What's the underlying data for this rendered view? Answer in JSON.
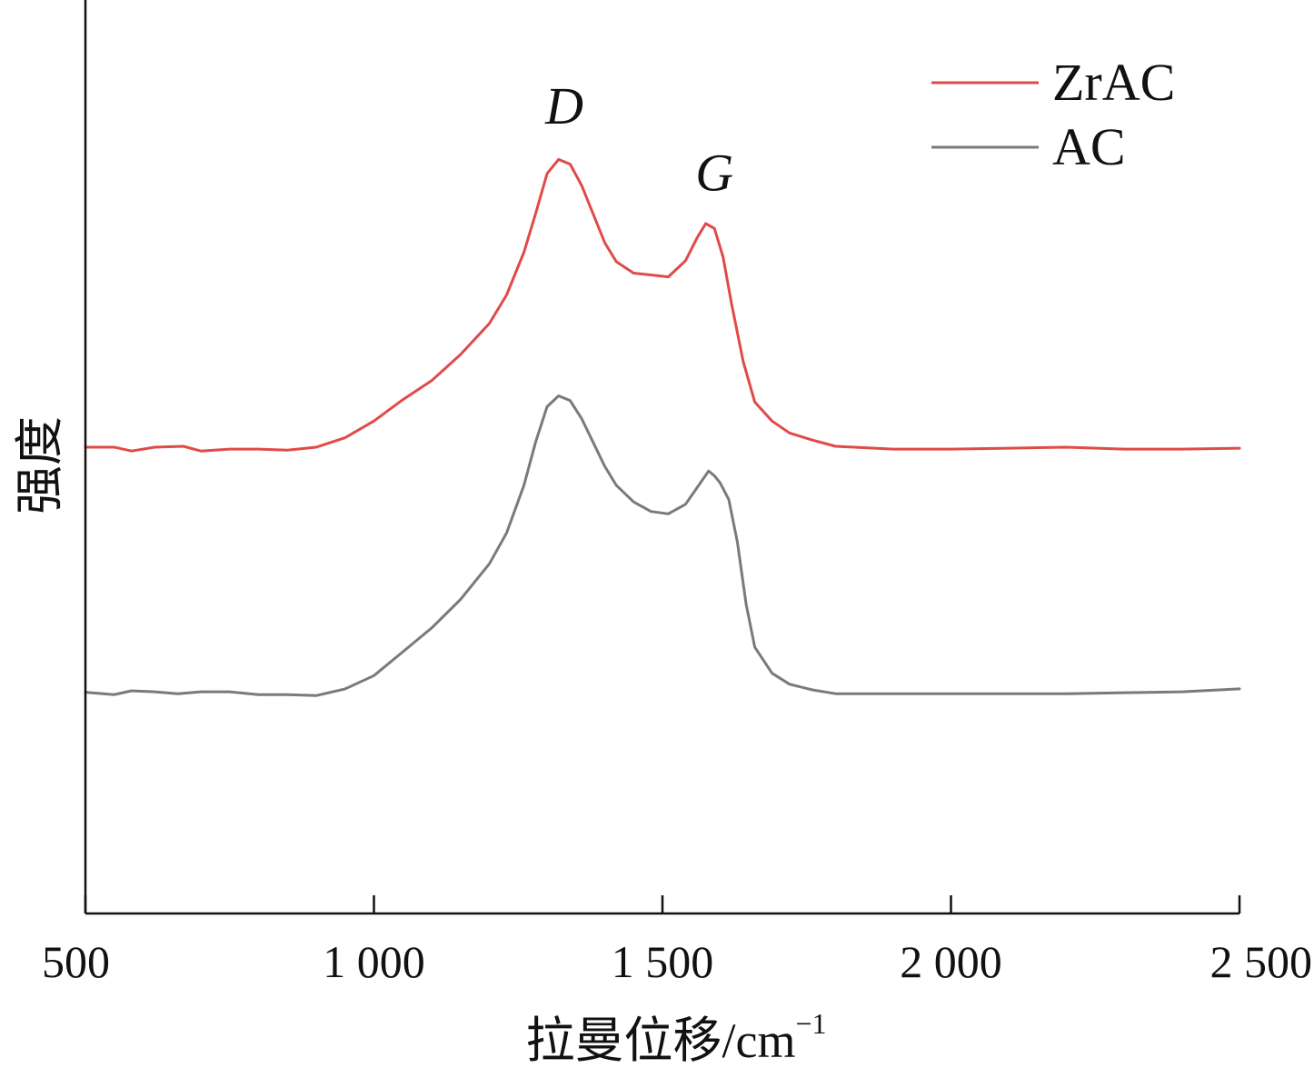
{
  "chart_data": {
    "type": "line",
    "xlabel_main": "拉曼位移/cm",
    "xlabel_sup": "−1",
    "ylabel": "强度",
    "xlim": [
      500,
      2500
    ],
    "xticks": [
      {
        "value": 500,
        "label": "500"
      },
      {
        "value": 1000,
        "label": "1 000"
      },
      {
        "value": 1500,
        "label": "1 500"
      },
      {
        "value": 2000,
        "label": "2 000"
      },
      {
        "value": 2500,
        "label": "2 500"
      }
    ],
    "annotations": [
      {
        "text": "D",
        "x": 1330,
        "y": 1.46
      },
      {
        "text": "G",
        "x": 1590,
        "y": 1.32
      }
    ],
    "legend": {
      "position": "top-right"
    },
    "ylim": [
      -0.2,
      1.72
    ],
    "series": [
      {
        "name": "ZrAC",
        "color": "#e04a48",
        "points": [
          [
            500,
            0.78
          ],
          [
            550,
            0.78
          ],
          [
            580,
            0.772
          ],
          [
            620,
            0.78
          ],
          [
            670,
            0.782
          ],
          [
            700,
            0.772
          ],
          [
            750,
            0.776
          ],
          [
            800,
            0.776
          ],
          [
            850,
            0.774
          ],
          [
            900,
            0.78
          ],
          [
            950,
            0.8
          ],
          [
            1000,
            0.835
          ],
          [
            1050,
            0.88
          ],
          [
            1100,
            0.92
          ],
          [
            1150,
            0.975
          ],
          [
            1200,
            1.04
          ],
          [
            1230,
            1.1
          ],
          [
            1260,
            1.19
          ],
          [
            1280,
            1.27
          ],
          [
            1300,
            1.355
          ],
          [
            1320,
            1.385
          ],
          [
            1340,
            1.375
          ],
          [
            1360,
            1.33
          ],
          [
            1380,
            1.27
          ],
          [
            1400,
            1.21
          ],
          [
            1420,
            1.17
          ],
          [
            1450,
            1.146
          ],
          [
            1480,
            1.142
          ],
          [
            1510,
            1.138
          ],
          [
            1540,
            1.172
          ],
          [
            1560,
            1.22
          ],
          [
            1575,
            1.25
          ],
          [
            1590,
            1.24
          ],
          [
            1605,
            1.18
          ],
          [
            1620,
            1.08
          ],
          [
            1640,
            0.96
          ],
          [
            1660,
            0.875
          ],
          [
            1690,
            0.835
          ],
          [
            1720,
            0.81
          ],
          [
            1760,
            0.795
          ],
          [
            1800,
            0.782
          ],
          [
            1900,
            0.776
          ],
          [
            2000,
            0.776
          ],
          [
            2100,
            0.778
          ],
          [
            2200,
            0.78
          ],
          [
            2300,
            0.776
          ],
          [
            2400,
            0.776
          ],
          [
            2500,
            0.778
          ]
        ]
      },
      {
        "name": "AC",
        "color": "#7a7a7a",
        "points": [
          [
            500,
            0.265
          ],
          [
            550,
            0.26
          ],
          [
            580,
            0.268
          ],
          [
            620,
            0.266
          ],
          [
            660,
            0.262
          ],
          [
            700,
            0.266
          ],
          [
            750,
            0.266
          ],
          [
            800,
            0.26
          ],
          [
            850,
            0.26
          ],
          [
            900,
            0.258
          ],
          [
            950,
            0.272
          ],
          [
            1000,
            0.3
          ],
          [
            1050,
            0.35
          ],
          [
            1100,
            0.4
          ],
          [
            1150,
            0.46
          ],
          [
            1200,
            0.535
          ],
          [
            1230,
            0.6
          ],
          [
            1260,
            0.7
          ],
          [
            1280,
            0.79
          ],
          [
            1300,
            0.865
          ],
          [
            1320,
            0.888
          ],
          [
            1340,
            0.878
          ],
          [
            1360,
            0.84
          ],
          [
            1380,
            0.79
          ],
          [
            1400,
            0.74
          ],
          [
            1420,
            0.7
          ],
          [
            1450,
            0.665
          ],
          [
            1480,
            0.645
          ],
          [
            1510,
            0.64
          ],
          [
            1540,
            0.66
          ],
          [
            1560,
            0.695
          ],
          [
            1580,
            0.73
          ],
          [
            1590,
            0.72
          ],
          [
            1600,
            0.705
          ],
          [
            1615,
            0.67
          ],
          [
            1630,
            0.58
          ],
          [
            1645,
            0.45
          ],
          [
            1660,
            0.36
          ],
          [
            1690,
            0.305
          ],
          [
            1720,
            0.282
          ],
          [
            1760,
            0.27
          ],
          [
            1800,
            0.262
          ],
          [
            1900,
            0.262
          ],
          [
            2000,
            0.262
          ],
          [
            2100,
            0.262
          ],
          [
            2200,
            0.262
          ],
          [
            2300,
            0.264
          ],
          [
            2400,
            0.266
          ],
          [
            2500,
            0.272
          ]
        ]
      }
    ]
  }
}
